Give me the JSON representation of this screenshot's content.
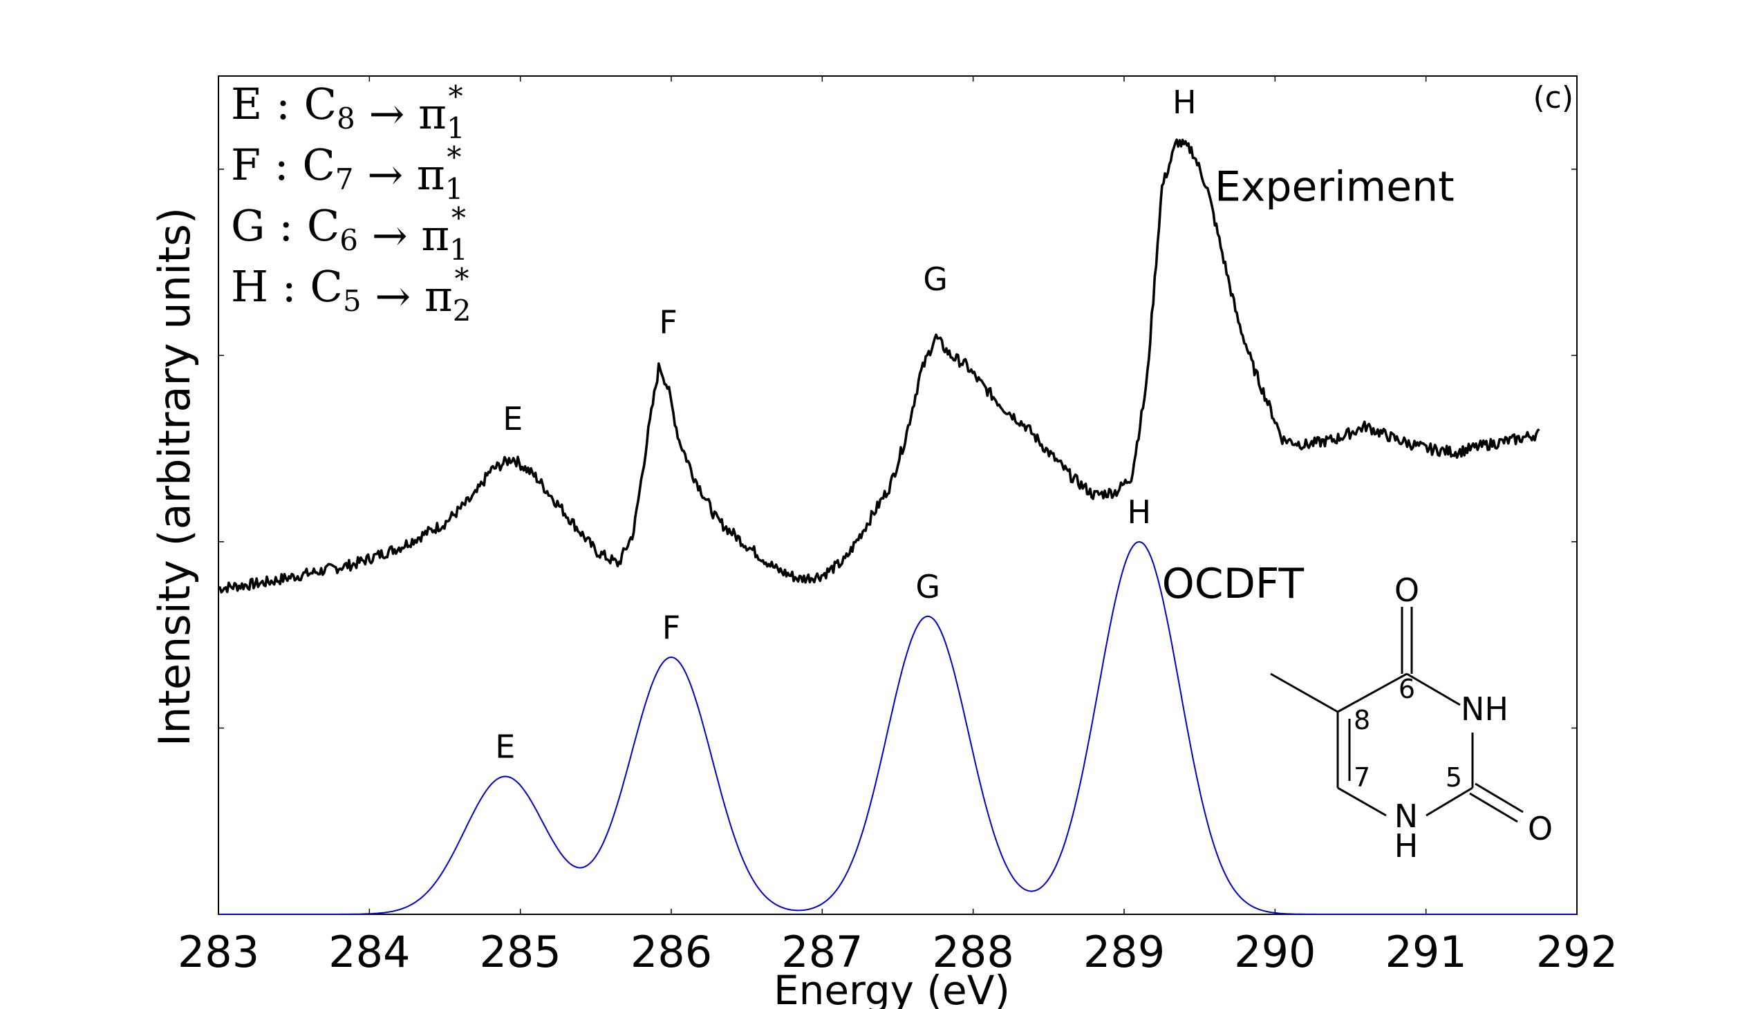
{
  "chart_data": {
    "type": "line",
    "panel_label": "(c)",
    "xlabel": "Energy (eV)",
    "ylabel": "Intensity (arbitrary units)",
    "xlim": [
      283,
      292
    ],
    "ylim": [
      0,
      4.5
    ],
    "x_ticks": [
      283,
      284,
      285,
      286,
      287,
      288,
      289,
      290,
      291,
      292
    ],
    "x_tick_labels": [
      "283",
      "284",
      "285",
      "286",
      "287",
      "288",
      "289",
      "290",
      "291",
      "292"
    ],
    "y_ticks": [
      1,
      2,
      3,
      4
    ],
    "y_tick_labels_shown": false,
    "grid": false,
    "legend": [
      {
        "peak": "E",
        "site": "C",
        "site_index": "8",
        "arrow": "→",
        "orbital": "π",
        "orbital_sup": "*",
        "orbital_index": "1"
      },
      {
        "peak": "F",
        "site": "C",
        "site_index": "7",
        "arrow": "→",
        "orbital": "π",
        "orbital_sup": "*",
        "orbital_index": "1"
      },
      {
        "peak": "G",
        "site": "C",
        "site_index": "6",
        "arrow": "→",
        "orbital": "π",
        "orbital_sup": "*",
        "orbital_index": "1"
      },
      {
        "peak": "H",
        "site": "C",
        "site_index": "5",
        "arrow": "→",
        "orbital": "π",
        "orbital_sup": "*",
        "orbital_index": "2"
      }
    ],
    "series": [
      {
        "name": "Experiment",
        "color": "#000000",
        "x": [
          283.0,
          283.3,
          283.6,
          283.9,
          284.2,
          284.5,
          284.7,
          284.8,
          284.95,
          285.1,
          285.3,
          285.5,
          285.65,
          285.75,
          285.85,
          285.92,
          285.98,
          286.05,
          286.15,
          286.3,
          286.5,
          286.7,
          286.85,
          287.0,
          287.15,
          287.3,
          287.45,
          287.55,
          287.65,
          287.75,
          287.85,
          287.95,
          288.05,
          288.2,
          288.35,
          288.5,
          288.65,
          288.8,
          288.95,
          289.05,
          289.15,
          289.25,
          289.35,
          289.45,
          289.55,
          289.65,
          289.75,
          289.85,
          289.95,
          290.05,
          290.2,
          290.4,
          290.6,
          290.8,
          291.0,
          291.2,
          291.4,
          291.6,
          291.75
        ],
        "y": [
          1.75,
          1.78,
          1.83,
          1.88,
          1.97,
          2.1,
          2.25,
          2.38,
          2.45,
          2.35,
          2.15,
          1.95,
          1.88,
          2.05,
          2.6,
          2.95,
          2.82,
          2.55,
          2.35,
          2.12,
          1.98,
          1.85,
          1.8,
          1.82,
          1.9,
          2.1,
          2.3,
          2.55,
          2.9,
          3.1,
          3.0,
          2.95,
          2.85,
          2.72,
          2.62,
          2.48,
          2.35,
          2.25,
          2.27,
          2.35,
          2.85,
          3.9,
          4.15,
          4.1,
          3.9,
          3.55,
          3.2,
          2.95,
          2.75,
          2.55,
          2.52,
          2.55,
          2.62,
          2.55,
          2.5,
          2.48,
          2.52,
          2.55,
          2.58
        ]
      },
      {
        "name": "OCDFT",
        "color": "#0000cc",
        "gaussian_peaks": [
          {
            "label": "E",
            "center": 284.9,
            "height": 0.74,
            "sigma": 0.27
          },
          {
            "label": "F",
            "center": 286.0,
            "height": 1.38,
            "sigma": 0.27
          },
          {
            "label": "G",
            "center": 287.7,
            "height": 1.6,
            "sigma": 0.27
          },
          {
            "label": "H",
            "center": 289.1,
            "height": 2.0,
            "sigma": 0.27
          }
        ]
      }
    ],
    "peak_labels_experiment": [
      {
        "label": "E",
        "x": 284.95,
        "y": 2.6
      },
      {
        "label": "F",
        "x": 285.98,
        "y": 3.12
      },
      {
        "label": "G",
        "x": 287.75,
        "y": 3.35
      },
      {
        "label": "H",
        "x": 289.4,
        "y": 4.3
      }
    ],
    "peak_labels_ocdft": [
      {
        "label": "E",
        "x": 284.9,
        "y": 0.84
      },
      {
        "label": "F",
        "x": 286.0,
        "y": 1.48
      },
      {
        "label": "G",
        "x": 287.7,
        "y": 1.7
      },
      {
        "label": "H",
        "x": 289.1,
        "y": 2.1
      }
    ],
    "series_labels": [
      {
        "text": "Experiment",
        "x": 289.6,
        "y": 3.83
      },
      {
        "text": "OCDFT",
        "x": 289.25,
        "y": 1.7
      }
    ]
  },
  "molecule": {
    "atoms": [
      "O",
      "NH",
      "O",
      "N",
      "H"
    ],
    "position_numbers": [
      "8",
      "7",
      "6",
      "5"
    ]
  }
}
